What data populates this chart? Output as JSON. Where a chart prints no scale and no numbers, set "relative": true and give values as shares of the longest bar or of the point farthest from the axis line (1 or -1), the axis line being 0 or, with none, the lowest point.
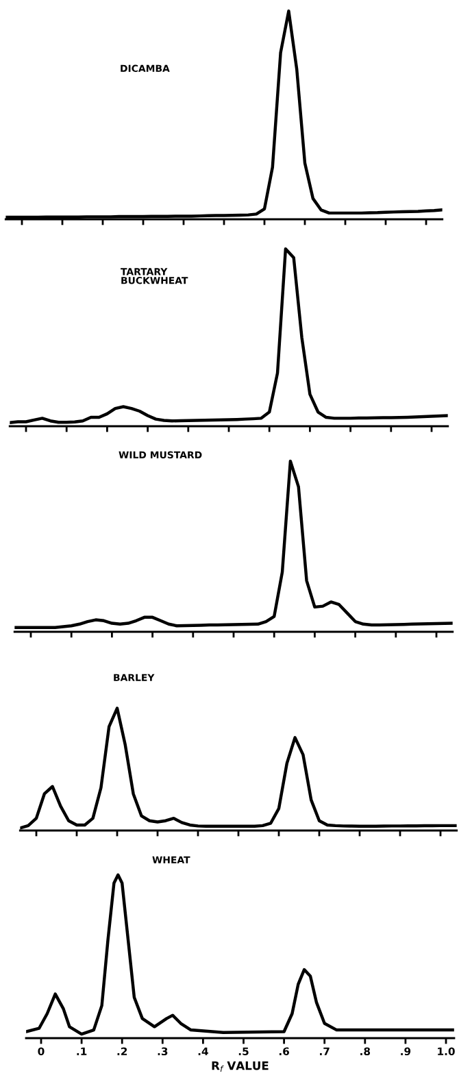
{
  "chart_data": [
    {
      "type": "line",
      "title": "DICAMBA",
      "relative": true,
      "color": "#000000",
      "categories": [
        null,
        null,
        null,
        null,
        null,
        null,
        null,
        null,
        null,
        null,
        null,
        null,
        null,
        null,
        null,
        null,
        null,
        null,
        null,
        null,
        null,
        null,
        null,
        null,
        null,
        null,
        null,
        null,
        null,
        null,
        null,
        null,
        null,
        null,
        null,
        null,
        null,
        null,
        null,
        null,
        null,
        null,
        null,
        null,
        null,
        null,
        null,
        null,
        null,
        null,
        null,
        null,
        null,
        null,
        null
      ],
      "values": [
        0.01,
        0.01,
        0.01,
        0.01,
        0.01,
        0.011,
        0.011,
        0.011,
        0.011,
        0.011,
        0.012,
        0.012,
        0.012,
        0.012,
        0.013,
        0.013,
        0.013,
        0.013,
        0.014,
        0.014,
        0.014,
        0.015,
        0.015,
        0.015,
        0.016,
        0.017,
        0.018,
        0.018,
        0.019,
        0.02,
        0.021,
        0.025,
        0.05,
        0.25,
        0.8,
        1.0,
        0.72,
        0.27,
        0.1,
        0.045,
        0.03,
        0.03,
        0.03,
        0.03,
        0.03,
        0.031,
        0.032,
        0.034,
        0.035,
        0.036,
        0.037,
        0.038,
        0.04,
        0.042,
        0.045
      ]
    },
    {
      "type": "line",
      "title": "TARTARY\nBUCKWHEAT",
      "relative": true,
      "color": "#000000",
      "categories": [
        null,
        null,
        null,
        null,
        null,
        null,
        null,
        null,
        null,
        null,
        null,
        null,
        null,
        null,
        null,
        null,
        null,
        null,
        null,
        null,
        null,
        null,
        null,
        null,
        null,
        null,
        null,
        null,
        null,
        null,
        null,
        null,
        null,
        null,
        null,
        null,
        null,
        null,
        null,
        null,
        null,
        null,
        null,
        null,
        null,
        null,
        null,
        null,
        null,
        null,
        null,
        null,
        null,
        null,
        null
      ],
      "values": [
        0.02,
        0.025,
        0.025,
        0.035,
        0.045,
        0.03,
        0.022,
        0.022,
        0.024,
        0.03,
        0.05,
        0.05,
        0.07,
        0.1,
        0.11,
        0.1,
        0.085,
        0.06,
        0.04,
        0.033,
        0.03,
        0.031,
        0.032,
        0.033,
        0.034,
        0.035,
        0.036,
        0.037,
        0.038,
        0.04,
        0.042,
        0.045,
        0.08,
        0.3,
        1.0,
        0.95,
        0.5,
        0.18,
        0.08,
        0.05,
        0.045,
        0.045,
        0.045,
        0.046,
        0.046,
        0.047,
        0.048,
        0.048,
        0.049,
        0.05,
        0.052,
        0.054,
        0.056,
        0.058,
        0.06
      ]
    },
    {
      "type": "line",
      "title": "WILD MUSTARD",
      "relative": true,
      "color": "#000000",
      "categories": [
        null,
        null,
        null,
        null,
        null,
        null,
        null,
        null,
        null,
        null,
        null,
        null,
        null,
        null,
        null,
        null,
        null,
        null,
        null,
        null,
        null,
        null,
        null,
        null,
        null,
        null,
        null,
        null,
        null,
        null,
        null,
        null,
        null,
        null,
        null,
        null,
        null,
        null,
        null,
        null,
        null,
        null,
        null,
        null,
        null,
        null,
        null,
        null,
        null,
        null,
        null,
        null,
        null,
        null,
        null
      ],
      "values": [
        0.025,
        0.025,
        0.025,
        0.025,
        0.025,
        0.025,
        0.03,
        0.035,
        0.045,
        0.06,
        0.07,
        0.065,
        0.05,
        0.045,
        0.05,
        0.065,
        0.085,
        0.085,
        0.065,
        0.045,
        0.035,
        0.036,
        0.037,
        0.038,
        0.04,
        0.04,
        0.041,
        0.042,
        0.043,
        0.044,
        0.045,
        0.06,
        0.09,
        0.35,
        1.0,
        0.85,
        0.3,
        0.145,
        0.15,
        0.175,
        0.16,
        0.11,
        0.06,
        0.045,
        0.04,
        0.04,
        0.041,
        0.042,
        0.043,
        0.045,
        0.046,
        0.047,
        0.048,
        0.049,
        0.05
      ]
    },
    {
      "type": "line",
      "title": "BARLEY",
      "relative": true,
      "color": "#000000",
      "categories": [
        null,
        null,
        null,
        null,
        null,
        null,
        null,
        null,
        null,
        null,
        null,
        null,
        null,
        null,
        null,
        null,
        null,
        null,
        null,
        null,
        null,
        null,
        null,
        null,
        null,
        null,
        null,
        null,
        null,
        null,
        null,
        null,
        null,
        null,
        null,
        null,
        null,
        null,
        null,
        null,
        null,
        null,
        null,
        null,
        null,
        null,
        null,
        null,
        null,
        null,
        null,
        null,
        null,
        null,
        null
      ],
      "values": [
        0.02,
        0.04,
        0.1,
        0.3,
        0.36,
        0.2,
        0.08,
        0.045,
        0.045,
        0.1,
        0.35,
        0.85,
        1.0,
        0.7,
        0.3,
        0.12,
        0.08,
        0.07,
        0.08,
        0.1,
        0.065,
        0.045,
        0.037,
        0.035,
        0.035,
        0.035,
        0.035,
        0.035,
        0.035,
        0.035,
        0.04,
        0.06,
        0.18,
        0.55,
        0.76,
        0.62,
        0.25,
        0.08,
        0.045,
        0.04,
        0.037,
        0.036,
        0.035,
        0.035,
        0.035,
        0.036,
        0.037,
        0.037,
        0.038,
        0.038,
        0.039,
        0.039,
        0.04,
        0.04,
        0.04
      ]
    },
    {
      "type": "line",
      "title": "WHEAT",
      "relative": true,
      "color": "#000000",
      "xlim": [
        -0.037,
        1.02
      ],
      "xlabel": "R$_{f}$ VALUE",
      "xticks": [
        {
          "value": 0,
          "label": "0"
        },
        {
          "value": 0.1,
          "label": ".1"
        },
        {
          "value": 0.2,
          "label": ".2"
        },
        {
          "value": 0.3,
          "label": ".3"
        },
        {
          "value": 0.4,
          "label": ".4"
        },
        {
          "value": 0.5,
          "label": ".5"
        },
        {
          "value": 0.6,
          "label": ".6"
        },
        {
          "value": 0.7,
          "label": ".7"
        },
        {
          "value": 0.8,
          "label": ".8"
        },
        {
          "value": 0.9,
          "label": ".9"
        },
        {
          "value": 1.0,
          "label": "1.0"
        }
      ],
      "x": [
        -0.037,
        -0.005,
        0.015,
        0.035,
        0.055,
        0.07,
        0.1,
        0.13,
        0.15,
        0.165,
        0.18,
        0.19,
        0.2,
        0.215,
        0.23,
        0.25,
        0.28,
        0.31,
        0.325,
        0.345,
        0.37,
        0.45,
        0.6,
        0.62,
        0.635,
        0.65,
        0.665,
        0.68,
        0.7,
        0.73,
        0.9,
        1.02
      ],
      "values": [
        0.04,
        0.06,
        0.15,
        0.27,
        0.18,
        0.07,
        0.025,
        0.05,
        0.2,
        0.6,
        0.95,
        1.0,
        0.95,
        0.6,
        0.25,
        0.12,
        0.07,
        0.12,
        0.14,
        0.09,
        0.05,
        0.035,
        0.04,
        0.15,
        0.33,
        0.42,
        0.38,
        0.22,
        0.09,
        0.05,
        0.05,
        0.05
      ]
    }
  ]
}
